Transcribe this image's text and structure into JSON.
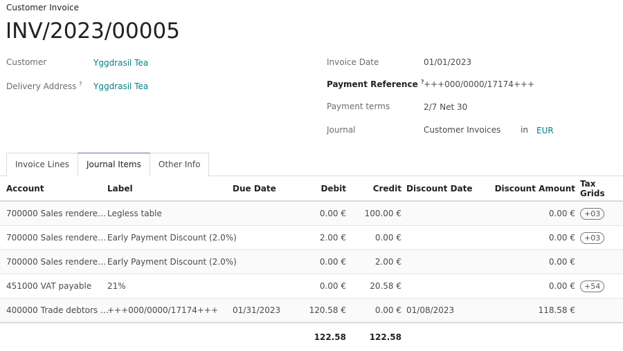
{
  "header": {
    "type": "Customer Invoice",
    "number": "INV/2023/00005"
  },
  "left_fields": [
    {
      "label": "Customer",
      "value": "Yggdrasil Tea",
      "help": ""
    },
    {
      "label": "Delivery Address",
      "value": "Yggdrasil Tea",
      "help": "?"
    }
  ],
  "right_fields": {
    "invoice_date": {
      "label": "Invoice Date",
      "value": "01/01/2023"
    },
    "payment_reference": {
      "label": "Payment Reference",
      "help": "?",
      "value": "+++000/0000/17174+++"
    },
    "payment_terms": {
      "label": "Payment terms",
      "value": "2/7 Net 30"
    },
    "journal": {
      "label": "Journal",
      "value": "Customer Invoices",
      "in": "in",
      "currency": "EUR"
    }
  },
  "tabs": [
    {
      "label": "Invoice Lines"
    },
    {
      "label": "Journal Items",
      "active": true
    },
    {
      "label": "Other Info"
    }
  ],
  "table": {
    "columns": [
      "Account",
      "Label",
      "Due Date",
      "Debit",
      "Credit",
      "Discount Date",
      "Discount Amount",
      "Tax Grids"
    ],
    "rows": [
      {
        "account": "700000 Sales rendere…",
        "label": "Legless table",
        "due": "",
        "debit": "0.00 €",
        "credit": "100.00 €",
        "disc_date": "",
        "disc_amount": "0.00 €",
        "tax": "+03"
      },
      {
        "account": "700000 Sales rendere…",
        "label": "Early Payment Discount (2.0%)",
        "due": "",
        "debit": "2.00 €",
        "credit": "0.00 €",
        "disc_date": "",
        "disc_amount": "0.00 €",
        "tax": "+03"
      },
      {
        "account": "700000 Sales rendere…",
        "label": "Early Payment Discount (2.0%)",
        "due": "",
        "debit": "0.00 €",
        "credit": "2.00 €",
        "disc_date": "",
        "disc_amount": "0.00 €",
        "tax": ""
      },
      {
        "account": "451000 VAT payable",
        "label": "21%",
        "due": "",
        "debit": "0.00 €",
        "credit": "20.58 €",
        "disc_date": "",
        "disc_amount": "0.00 €",
        "tax": "+54"
      },
      {
        "account": "400000 Trade debtors …",
        "label": "+++000/0000/17174+++",
        "due": "01/31/2023",
        "debit": "120.58 €",
        "credit": "0.00 €",
        "disc_date": "01/08/2023",
        "disc_amount": "118.58 €",
        "tax": ""
      }
    ],
    "totals": {
      "debit": "122.58",
      "credit": "122.58"
    }
  }
}
